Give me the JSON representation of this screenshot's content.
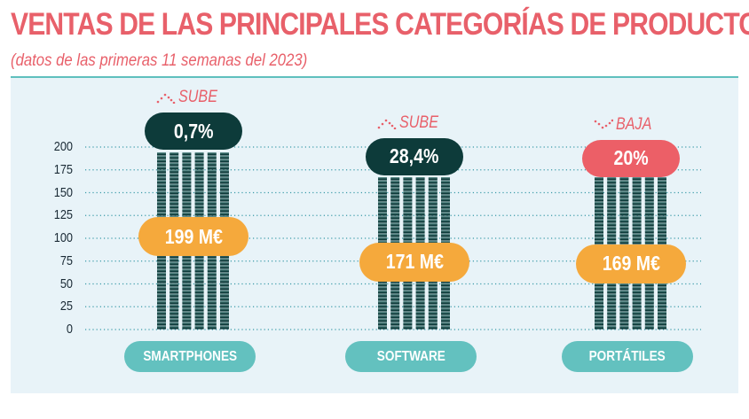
{
  "chart_data": {
    "type": "bar",
    "title": "VENTAS DE LAS PRINCIPALES CATEGORÍAS DE PRODUCTO",
    "subtitle": "(datos de las primeras 11 semanas del 2023)",
    "categories": [
      "SMARTPHONES",
      "SOFTWARE",
      "PORTÁTILES"
    ],
    "values": [
      199,
      171,
      169
    ],
    "value_labels": [
      "199 M€",
      "171 M€",
      "169 M€"
    ],
    "changes": [
      {
        "trend": "SUBE",
        "direction": "up",
        "value": "0,7%",
        "color": "#0d3b3a"
      },
      {
        "trend": "SUBE",
        "direction": "up",
        "value": "28,4%",
        "color": "#0d3b3a"
      },
      {
        "trend": "BAJA",
        "direction": "down",
        "value": "20%",
        "color": "#ec5f67"
      }
    ],
    "yticks": [
      "0",
      "25",
      "50",
      "75",
      "100",
      "125",
      "150",
      "175",
      "200"
    ],
    "ylim": [
      0,
      200
    ],
    "grid": true,
    "colors": {
      "bar": "#0d3b3a",
      "value_pill": "#f5a93c",
      "category_pill": "#63c1bf",
      "title": "#e8606a",
      "panel": "#e8f3f8"
    }
  }
}
